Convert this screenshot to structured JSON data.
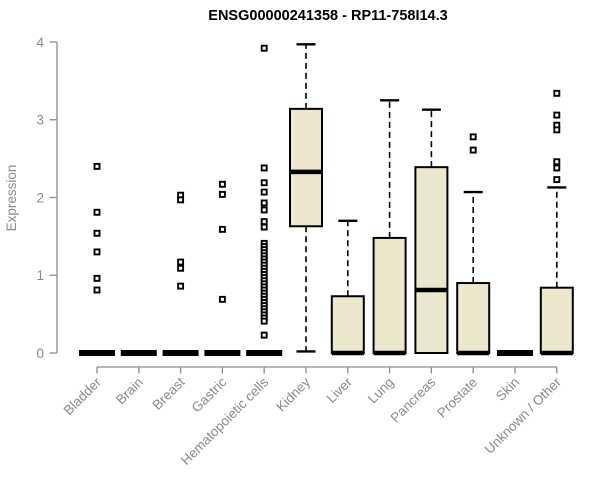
{
  "chart_data": {
    "type": "boxplot",
    "title": "ENSG00000241358 - RP11-758I14.3",
    "xlabel": "",
    "ylabel": "Expression",
    "ylim": [
      0,
      4
    ],
    "yticks": [
      0,
      1,
      2,
      3,
      4
    ],
    "grid": false,
    "legend": "none",
    "categories": [
      "Bladder",
      "Brain",
      "Breast",
      "Gastric",
      "Hematopoietic cells",
      "Kidney",
      "Liver",
      "Lung",
      "Pancreas",
      "Prostate",
      "Skin",
      "Unknown / Other"
    ],
    "boxes": [
      {
        "category": "Bladder",
        "whisker_low": 0,
        "q1": 0,
        "median": 0,
        "q3": 0,
        "whisker_high": 0,
        "outliers": [
          2.4,
          1.81,
          1.54,
          1.3,
          0.96,
          0.81
        ]
      },
      {
        "category": "Brain",
        "whisker_low": 0,
        "q1": 0,
        "median": 0,
        "q3": 0,
        "whisker_high": 0,
        "outliers": []
      },
      {
        "category": "Breast",
        "whisker_low": 0,
        "q1": 0,
        "median": 0,
        "q3": 0,
        "whisker_high": 0,
        "outliers": [
          2.03,
          1.97,
          1.17,
          1.09,
          0.86
        ]
      },
      {
        "category": "Gastric",
        "whisker_low": 0,
        "q1": 0,
        "median": 0,
        "q3": 0,
        "whisker_high": 0,
        "outliers": [
          2.17,
          2.04,
          1.59,
          0.69
        ]
      },
      {
        "category": "Hematopoietic cells",
        "whisker_low": 0,
        "q1": 0,
        "median": 0,
        "q3": 0,
        "whisker_high": 0,
        "outliers": [
          3.92,
          2.38,
          2.19,
          2.07,
          1.93,
          1.84,
          1.69,
          1.62,
          1.41,
          1.37,
          1.33,
          1.29,
          1.25,
          1.21,
          1.17,
          1.13,
          1.09,
          1.05,
          1.01,
          0.97,
          0.93,
          0.89,
          0.85,
          0.81,
          0.77,
          0.73,
          0.69,
          0.65,
          0.61,
          0.57,
          0.53,
          0.49,
          0.45,
          0.41,
          0.23
        ]
      },
      {
        "category": "Kidney",
        "whisker_low": 0.02,
        "q1": 1.63,
        "median": 2.33,
        "q3": 3.14,
        "whisker_high": 3.97,
        "outliers": []
      },
      {
        "category": "Liver",
        "whisker_low": 0,
        "q1": 0,
        "median": 0,
        "q3": 0.73,
        "whisker_high": 1.7,
        "outliers": []
      },
      {
        "category": "Lung",
        "whisker_low": 0,
        "q1": 0,
        "median": 0,
        "q3": 1.48,
        "whisker_high": 3.25,
        "outliers": []
      },
      {
        "category": "Pancreas",
        "whisker_low": 0,
        "q1": 0,
        "median": 0.81,
        "q3": 2.39,
        "whisker_high": 3.13,
        "outliers": []
      },
      {
        "category": "Prostate",
        "whisker_low": 0,
        "q1": 0,
        "median": 0,
        "q3": 0.9,
        "whisker_high": 2.07,
        "outliers": [
          2.78,
          2.61
        ]
      },
      {
        "category": "Skin",
        "whisker_low": 0,
        "q1": 0,
        "median": 0,
        "q3": 0,
        "whisker_high": 0,
        "outliers": []
      },
      {
        "category": "Unknown / Other",
        "whisker_low": 0,
        "q1": 0,
        "median": 0,
        "q3": 0.84,
        "whisker_high": 2.13,
        "outliers": [
          3.34,
          3.06,
          2.93,
          2.87,
          2.46,
          2.38,
          2.23
        ]
      }
    ],
    "colors": {
      "box_fill": "#EDE8CD",
      "box_stroke": "#000000",
      "median": "#000000",
      "whisker": "#000000",
      "outlier": "#000000",
      "axis": "#8a8a8a",
      "labels": "#8a8a8a",
      "title": "#000000",
      "background": "#ffffff"
    }
  }
}
